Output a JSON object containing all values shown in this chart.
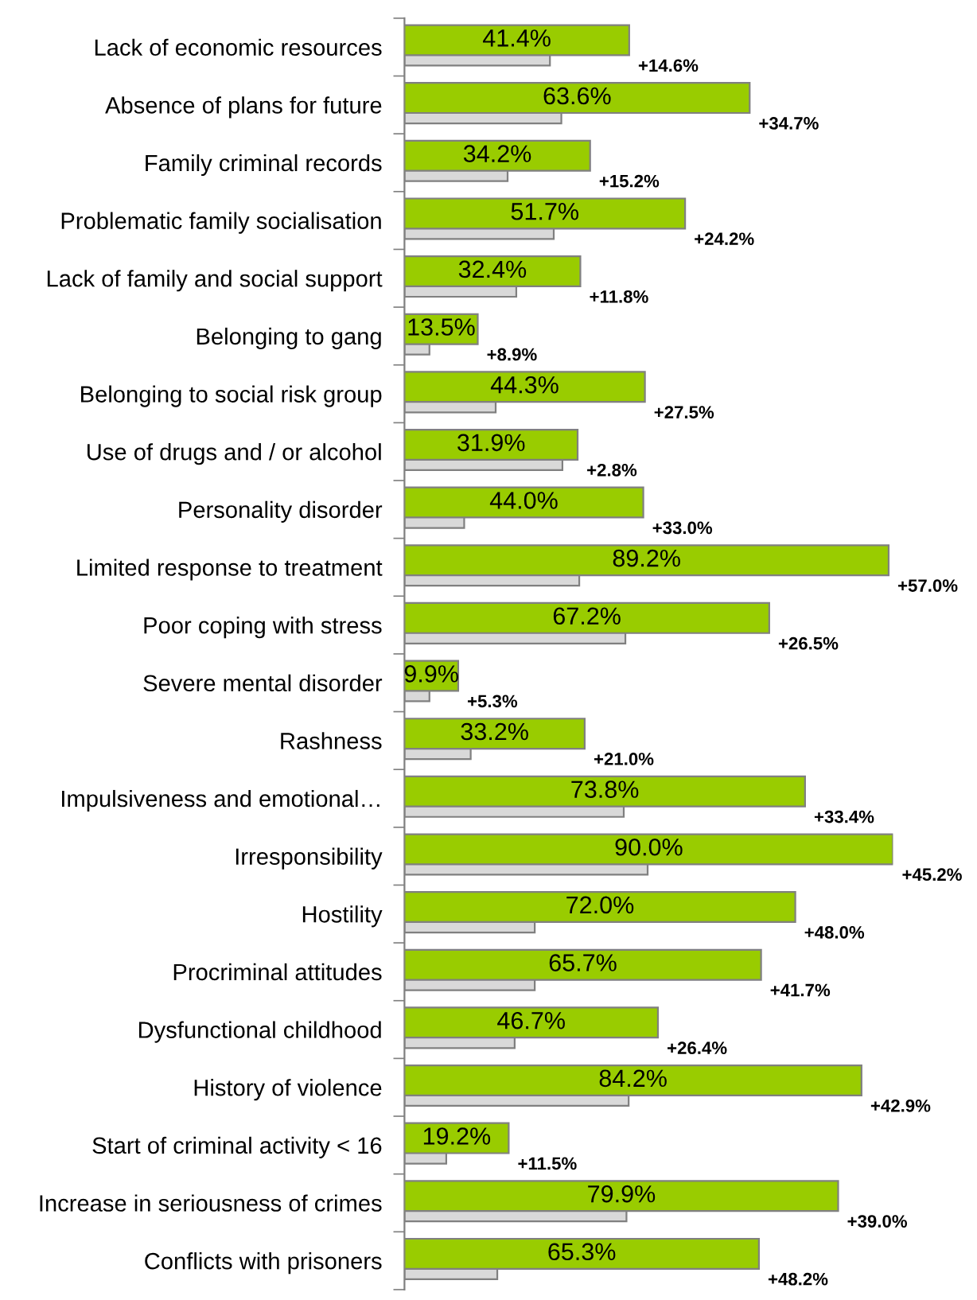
{
  "chart_data": {
    "type": "bar",
    "orientation": "horizontal",
    "legend": false,
    "grid": false,
    "categories": [
      "Lack of economic resources",
      "Absence of plans for future",
      "Family criminal records",
      "Problematic family socialisation",
      "Lack of family and social support",
      "Belonging to gang",
      "Belonging to social risk group",
      "Use of drugs and / or alcohol",
      "Personality disorder",
      "Limited response to treatment",
      "Poor coping with stress",
      "Severe mental disorder",
      "Rashness",
      "Impulsiveness and emotional…",
      "Irresponsibility",
      "Hostility",
      "Procriminal attitudes",
      "Dysfunctional childhood",
      "History of violence",
      "Start of criminal activity < 16",
      "Increase in seriousness of crimes",
      "Conflicts with prisoners"
    ],
    "series": [
      {
        "color": "#99cc00",
        "values": [
          41.4,
          63.6,
          34.2,
          51.7,
          32.4,
          13.5,
          44.3,
          31.9,
          44.0,
          89.2,
          67.2,
          9.9,
          33.2,
          73.8,
          90.0,
          72.0,
          65.7,
          46.7,
          84.2,
          19.2,
          79.9,
          65.3
        ],
        "value_labels": [
          "41.4%",
          "63.6%",
          "34.2%",
          "51.7%",
          "32.4%",
          "13.5%",
          "44.3%",
          "31.9%",
          "44.0%",
          "89.2%",
          "67.2%",
          "9.9%",
          "33.2%",
          "73.8%",
          "90.0%",
          "72.0%",
          "65.7%",
          "46.7%",
          "84.2%",
          "19.2%",
          "79.9%",
          "65.3%"
        ]
      },
      {
        "color": "#d9d9d9",
        "values": [
          26.8,
          28.9,
          19.0,
          27.5,
          20.6,
          4.6,
          16.8,
          29.1,
          11.0,
          32.2,
          40.7,
          4.6,
          12.2,
          40.4,
          44.8,
          24.0,
          24.0,
          20.3,
          41.3,
          7.7,
          40.9,
          17.1
        ]
      }
    ],
    "annotations": [
      {
        "text": "+14.6%",
        "x": 41.4,
        "y": "Lack of economic resources"
      },
      {
        "text": "+34.7%",
        "x": 63.6,
        "y": "Absence of plans for future"
      },
      {
        "text": "+15.2%",
        "x": 34.2,
        "y": "Family criminal records"
      },
      {
        "text": "+24.2%",
        "x": 51.7,
        "y": "Problematic family socialisation"
      },
      {
        "text": "+11.8%",
        "x": 32.4,
        "y": "Lack of family and social support"
      },
      {
        "text": "+8.9%",
        "x": 13.5,
        "y": "Belonging to gang"
      },
      {
        "text": "+27.5%",
        "x": 44.3,
        "y": "Belonging to social risk group"
      },
      {
        "text": "+2.8%",
        "x": 31.9,
        "y": "Use of drugs and / or alcohol"
      },
      {
        "text": "+33.0%",
        "x": 44.0,
        "y": "Personality disorder"
      },
      {
        "text": "+57.0%",
        "x": 89.2,
        "y": "Limited response to treatment"
      },
      {
        "text": "+26.5%",
        "x": 67.2,
        "y": "Poor coping with stress"
      },
      {
        "text": "+5.3%",
        "x": 9.9,
        "y": "Severe mental disorder"
      },
      {
        "text": "+21.0%",
        "x": 33.2,
        "y": "Rashness"
      },
      {
        "text": "+33.4%",
        "x": 73.8,
        "y": "Impulsiveness and emotional…"
      },
      {
        "text": "+45.2%",
        "x": 90.0,
        "y": "Irresponsibility"
      },
      {
        "text": "+48.0%",
        "x": 72.0,
        "y": "Hostility"
      },
      {
        "text": "+41.7%",
        "x": 65.7,
        "y": "Procriminal attitudes"
      },
      {
        "text": "+26.4%",
        "x": 46.7,
        "y": "Dysfunctional childhood"
      },
      {
        "text": "+42.9%",
        "x": 84.2,
        "y": "History of violence"
      },
      {
        "text": "+11.5%",
        "x": 19.2,
        "y": "Start of criminal activity < 16"
      },
      {
        "text": "+39.0%",
        "x": 79.9,
        "y": "Increase in seriousness of crimes"
      },
      {
        "text": "+48.2%",
        "x": 65.3,
        "y": "Conflicts with prisoners"
      }
    ]
  }
}
